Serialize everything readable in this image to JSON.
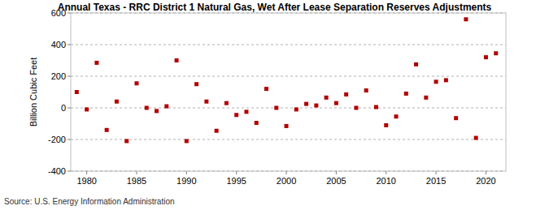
{
  "chart_data": {
    "type": "scatter",
    "title": "Annual Texas - RRC District 1 Natural Gas, Wet After Lease Separation Reserves Adjustments",
    "y_label": "Billion Cubic Feet",
    "source": "Source: U.S. Energy Information Administration",
    "x": [
      1979,
      1980,
      1981,
      1982,
      1983,
      1984,
      1985,
      1986,
      1987,
      1988,
      1989,
      1990,
      1991,
      1992,
      1993,
      1994,
      1995,
      1996,
      1997,
      1998,
      1999,
      2000,
      2001,
      2002,
      2003,
      2004,
      2005,
      2006,
      2007,
      2008,
      2009,
      2010,
      2011,
      2012,
      2013,
      2014,
      2015,
      2016,
      2017,
      2018,
      2019,
      2020,
      2021
    ],
    "values": [
      100,
      -10,
      285,
      -140,
      40,
      -210,
      155,
      0,
      -20,
      10,
      300,
      -210,
      150,
      40,
      -145,
      30,
      -45,
      -25,
      -95,
      120,
      0,
      -115,
      -10,
      25,
      15,
      65,
      30,
      85,
      0,
      110,
      5,
      -110,
      -55,
      90,
      275,
      65,
      165,
      175,
      -65,
      560,
      -190,
      320,
      345
    ],
    "color": "#b20000",
    "marker": "square",
    "xlim": [
      1978.4,
      2022
    ],
    "xticks": [
      1980,
      1985,
      1990,
      1995,
      2000,
      2005,
      2010,
      2015,
      2020
    ],
    "ylim": [
      -400,
      600
    ],
    "yticks": [
      -400,
      -200,
      0,
      200,
      400,
      600
    ],
    "grid": true
  }
}
